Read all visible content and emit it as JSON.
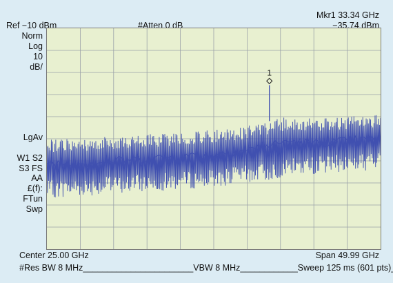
{
  "header": {
    "ref": "Ref −10 dBm",
    "atten": "#Atten 0 dB",
    "marker_title": "Mkr1 33.34 GHz",
    "marker_value": "−35.74 dBm"
  },
  "left_panel": {
    "scale_lines": [
      "Norm",
      "Log",
      "10",
      "dB/"
    ],
    "lgav": "LgAv",
    "w1_s2": "W1  S2",
    "s3_fs": "S3  FS",
    "aa": "AA",
    "ff": "£(f):",
    "ftun": "FTun",
    "swp": "Swp"
  },
  "footer": {
    "center": "Center 25.00 GHz",
    "span": "Span 49.99 GHz",
    "res_bw": "#Res BW 8 MHz",
    "vbw": "VBW 8 MHz",
    "sweep": "Sweep 125 ms (601 pts)",
    "sep1": "_______________________",
    "sep2": "____________",
    "sep3": "_"
  },
  "marker": {
    "label": "1",
    "freq_ghz": 33.34,
    "level_dbm": -35.74
  },
  "chart_data": {
    "type": "line",
    "x_unit": "GHz",
    "y_unit": "dBm",
    "x_center": 25.0,
    "x_span": 49.99,
    "y_ref": -10,
    "y_scale_db_per_div": 10,
    "grid": true,
    "divisions": {
      "x": 10,
      "y": 10
    },
    "noise_floor_dbm": [
      [
        0.0,
        -87
      ],
      [
        5.0,
        -86
      ],
      [
        10.0,
        -85
      ],
      [
        15.0,
        -84
      ],
      [
        20.0,
        -83
      ],
      [
        25.0,
        -82
      ],
      [
        30.0,
        -80
      ],
      [
        33.34,
        -79
      ],
      [
        36.0,
        -77
      ],
      [
        40.0,
        -76
      ],
      [
        45.0,
        -75
      ],
      [
        50.0,
        -74
      ]
    ],
    "noise_top_dbm": [
      [
        0.0,
        -60
      ],
      [
        5.0,
        -60
      ],
      [
        10.0,
        -59
      ],
      [
        15.0,
        -58
      ],
      [
        20.0,
        -57
      ],
      [
        25.0,
        -56
      ],
      [
        30.0,
        -54
      ],
      [
        33.34,
        -52
      ],
      [
        36.0,
        -50
      ],
      [
        40.0,
        -51
      ],
      [
        45.0,
        -50
      ],
      [
        50.0,
        -49
      ]
    ],
    "marker_peak": {
      "x": 33.34,
      "y": -35.74
    }
  },
  "colors": {
    "trace": "#4050b0",
    "grid": "#9aa0a8",
    "screen_bg": "#e8f0d0",
    "page_bg": "#dcecf4"
  }
}
